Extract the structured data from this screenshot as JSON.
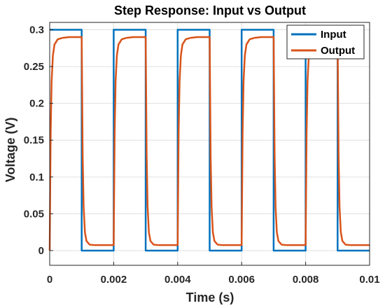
{
  "chart_data": {
    "type": "line",
    "title": "Step Response: Input vs Output",
    "xlabel": "Time (s)",
    "ylabel": "Voltage (V)",
    "xlim": [
      0,
      0.01
    ],
    "ylim": [
      -0.02,
      0.31
    ],
    "x_ticks": [
      0,
      0.002,
      0.004,
      0.006,
      0.008,
      0.01
    ],
    "x_tick_labels": [
      "0",
      "0.002",
      "0.004",
      "0.006",
      "0.008",
      "0.01"
    ],
    "y_ticks": [
      0,
      0.05,
      0.1,
      0.15,
      0.2,
      0.25,
      0.3
    ],
    "y_tick_labels": [
      "0",
      "0.05",
      "0.1",
      "0.15",
      "0.2",
      "0.25",
      "0.3"
    ],
    "grid": true,
    "legend_position": "top-right",
    "series": [
      {
        "name": "Input",
        "color": "#0072BD",
        "x": [
          0,
          0.001,
          0.001,
          0.002,
          0.002,
          0.003,
          0.003,
          0.004,
          0.004,
          0.005,
          0.005,
          0.006,
          0.006,
          0.007,
          0.007,
          0.008,
          0.008,
          0.009,
          0.009,
          0.01
        ],
        "y": [
          0.3,
          0.3,
          0,
          0,
          0.3,
          0.3,
          0,
          0,
          0.3,
          0.3,
          0,
          0,
          0.3,
          0.3,
          0,
          0,
          0.3,
          0.3,
          0,
          0
        ]
      },
      {
        "name": "Output",
        "color": "#D95319",
        "x": [
          0,
          3e-05,
          6e-05,
          0.0001,
          0.00015,
          0.00025,
          0.0004,
          0.0006,
          0.001,
          0.00103,
          0.00106,
          0.0011,
          0.00115,
          0.00125,
          0.0014,
          0.0016,
          0.002,
          0.00203,
          0.00206,
          0.0021,
          0.00215,
          0.00225,
          0.0024,
          0.0026,
          0.003,
          0.00303,
          0.00306,
          0.0031,
          0.00315,
          0.00325,
          0.0034,
          0.0036,
          0.004,
          0.00403,
          0.00406,
          0.0041,
          0.00415,
          0.00425,
          0.0044,
          0.0046,
          0.005,
          0.00503,
          0.00506,
          0.0051,
          0.00515,
          0.00525,
          0.0054,
          0.0056,
          0.006,
          0.00603,
          0.00606,
          0.0061,
          0.00615,
          0.00625,
          0.0064,
          0.0066,
          0.007,
          0.00703,
          0.00706,
          0.0071,
          0.00715,
          0.00725,
          0.0074,
          0.0076,
          0.008,
          0.00803,
          0.00806,
          0.0081,
          0.00815,
          0.00825,
          0.0084,
          0.0086,
          0.009,
          0.00903,
          0.00906,
          0.0091,
          0.00915,
          0.00925,
          0.0094,
          0.0096,
          0.01
        ],
        "y": [
          0,
          0.16,
          0.23,
          0.265,
          0.28,
          0.287,
          0.289,
          0.29,
          0.29,
          0.13,
          0.06,
          0.025,
          0.013,
          0.008,
          0.0075,
          0.0075,
          0.0075,
          0.16,
          0.23,
          0.265,
          0.28,
          0.287,
          0.289,
          0.29,
          0.29,
          0.13,
          0.06,
          0.025,
          0.013,
          0.008,
          0.0075,
          0.0075,
          0.0075,
          0.16,
          0.23,
          0.265,
          0.28,
          0.287,
          0.289,
          0.29,
          0.29,
          0.13,
          0.06,
          0.025,
          0.013,
          0.008,
          0.0075,
          0.0075,
          0.0075,
          0.16,
          0.23,
          0.265,
          0.28,
          0.287,
          0.289,
          0.29,
          0.29,
          0.13,
          0.06,
          0.025,
          0.013,
          0.008,
          0.0075,
          0.0075,
          0.0075,
          0.16,
          0.23,
          0.265,
          0.28,
          0.287,
          0.289,
          0.29,
          0.29,
          0.13,
          0.06,
          0.025,
          0.013,
          0.008,
          0.0075,
          0.0075,
          0.0075
        ]
      }
    ]
  }
}
